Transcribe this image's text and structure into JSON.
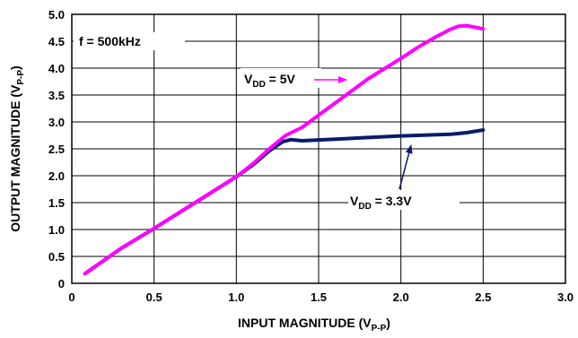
{
  "chart_data": {
    "type": "line",
    "xlabel": {
      "main": "INPUT MAGNITUDE (V",
      "sub": "P-P",
      "end": ")"
    },
    "ylabel": {
      "main": "OUTPUT MAGNITUDE (V",
      "sub": "P-P",
      "end": ")"
    },
    "xlim": [
      0,
      3.0
    ],
    "ylim": [
      0,
      5.0
    ],
    "xticks": [
      "0",
      "0.5",
      "1.0",
      "1.5",
      "2.0",
      "2.5",
      "3.0"
    ],
    "yticks": [
      "0",
      "0.5",
      "1.0",
      "1.5",
      "2.0",
      "2.5",
      "3.0",
      "3.5",
      "4.0",
      "4.5",
      "5.0"
    ],
    "grid": true,
    "series": [
      {
        "color": "#0a1a6e",
        "x": [
          0.08,
          0.3,
          0.5,
          0.75,
          1.0,
          1.1,
          1.2,
          1.28,
          1.33,
          1.4,
          1.6,
          1.8,
          2.0,
          2.2,
          2.3,
          2.4,
          2.5
        ],
        "y": [
          0.18,
          0.65,
          1.02,
          1.5,
          1.98,
          2.2,
          2.46,
          2.63,
          2.67,
          2.65,
          2.68,
          2.71,
          2.74,
          2.76,
          2.77,
          2.8,
          2.85
        ]
      },
      {
        "color": "#ff00ff",
        "x": [
          0.08,
          0.3,
          0.5,
          0.75,
          1.0,
          1.1,
          1.2,
          1.3,
          1.4,
          1.6,
          1.8,
          2.0,
          2.1,
          2.2,
          2.3,
          2.35,
          2.4,
          2.45,
          2.5
        ],
        "y": [
          0.18,
          0.65,
          1.02,
          1.5,
          1.98,
          2.22,
          2.5,
          2.75,
          2.9,
          3.35,
          3.8,
          4.18,
          4.38,
          4.56,
          4.72,
          4.78,
          4.79,
          4.76,
          4.73
        ]
      }
    ],
    "annotations": {
      "freq": "f = 500kHz",
      "vdd5": {
        "base": "V",
        "sub": "DD",
        "rest": " = 5V"
      },
      "vdd33": {
        "base": "V",
        "sub": "DD",
        "rest": " = 3.3V"
      }
    }
  }
}
